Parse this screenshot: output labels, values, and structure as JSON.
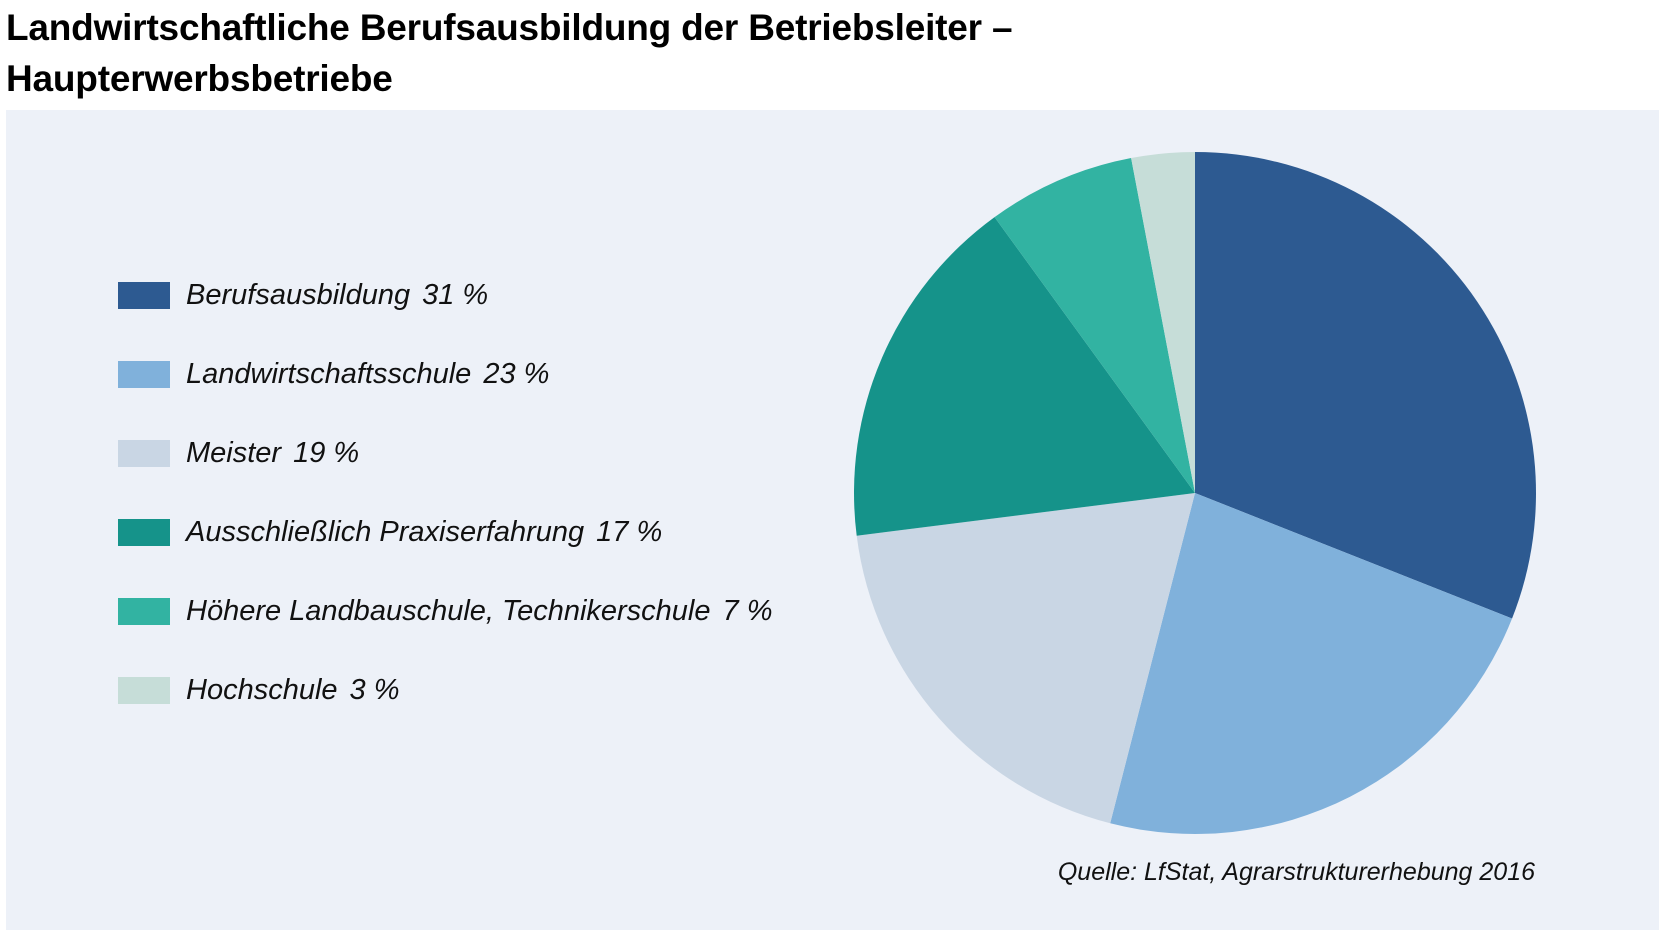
{
  "title": {
    "line1": "Landwirtschaftliche Berufsausbildung der Betriebsleiter –",
    "line2": "Haupterwerbsbetriebe"
  },
  "source": "Quelle: LfStat, Agrarstrukturerhebung 2016",
  "chart_data": {
    "type": "pie",
    "title": "Landwirtschaftliche Berufsausbildung der Betriebsleiter – Haupterwerbsbetriebe",
    "legend_position": "left",
    "start": "12 o'clock, clockwise",
    "slices": [
      {
        "label": "Berufsausbildung",
        "value": 31,
        "value_text": "31 %",
        "color": "#2d5a91"
      },
      {
        "label": "Landwirtschaftsschule",
        "value": 23,
        "value_text": "23 %",
        "color": "#80b1db"
      },
      {
        "label": "Meister",
        "value": 19,
        "value_text": "19 %",
        "color": "#c9d6e4"
      },
      {
        "label": "Ausschließlich Praxiserfahrung",
        "value": 17,
        "value_text": "17 %",
        "color": "#15938a"
      },
      {
        "label": "Höhere Landbauschule, Technikerschule",
        "value": 7,
        "value_text": "7 %",
        "color": "#32b3a2"
      },
      {
        "label": "Hochschule",
        "value": 3,
        "value_text": "3 %",
        "color": "#c6ddd8"
      }
    ]
  }
}
